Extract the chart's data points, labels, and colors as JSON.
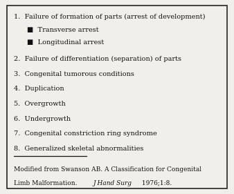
{
  "background_color": "#f0efea",
  "border_color": "#222222",
  "text_color": "#111111",
  "main_items": [
    "1.  Failure of formation of parts (arrest of development)",
    "2.  Failure of differentiation (separation) of parts",
    "3.  Congenital tumorous conditions",
    "4.  Duplication",
    "5.  Overgrowth",
    "6.  Undergrowth",
    "7.  Congenital constriction ring syndrome",
    "8.  Generalized skeletal abnormalities"
  ],
  "sub_items": [
    "■  Transverse arrest",
    "■  Longitudinal arrest"
  ],
  "footer_line1": "Modified from Swanson AB. A Classification for Congenital",
  "footer_line2_pre": "Limb Malformation. ",
  "footer_line2_italic": "J Hand Surg",
  "footer_line2_post": " 1976;1:8.",
  "font_size_main": 7.0,
  "font_size_sub": 7.0,
  "font_size_footer": 6.5
}
